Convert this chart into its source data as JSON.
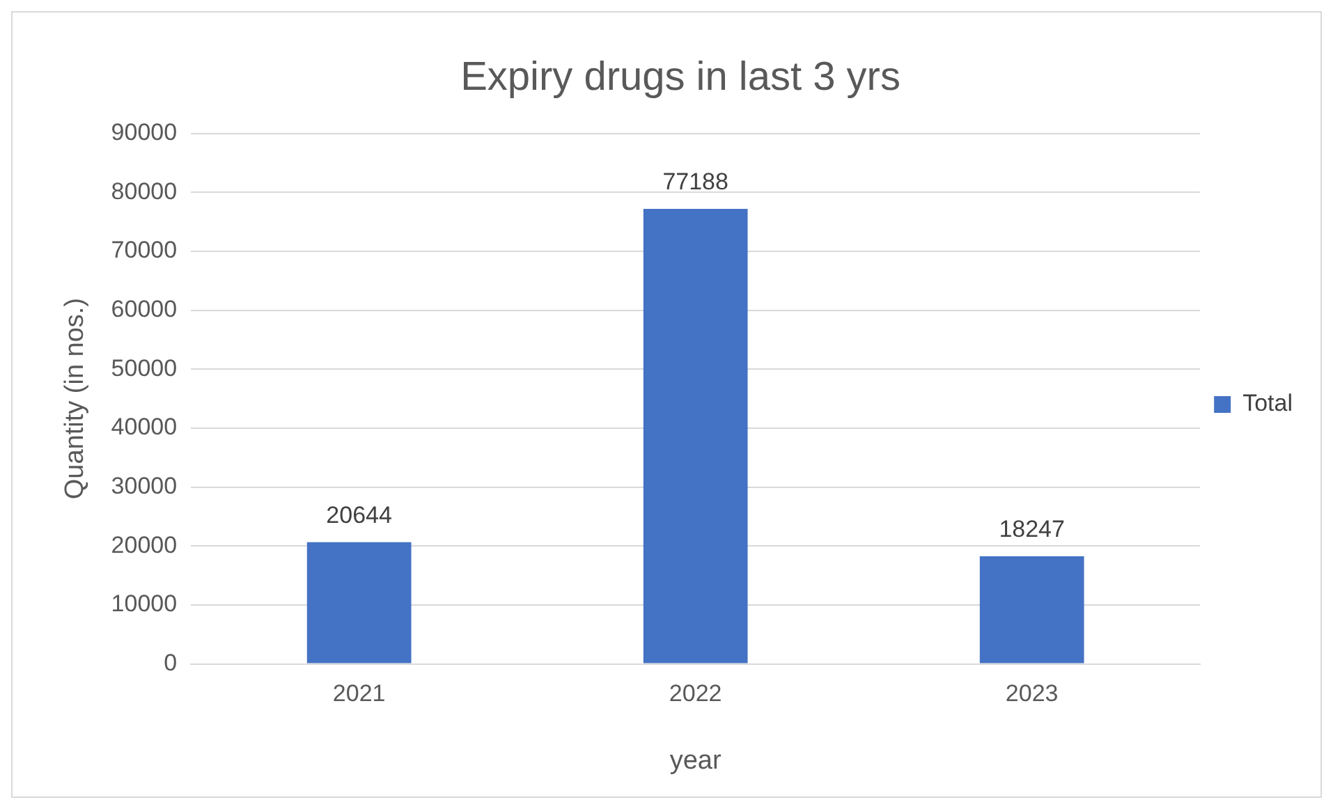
{
  "chart_data": {
    "type": "bar",
    "title": "Expiry drugs in last 3 yrs",
    "xlabel": "year",
    "ylabel": "Quantity (in nos.)",
    "categories": [
      "2021",
      "2022",
      "2023"
    ],
    "series": [
      {
        "name": "Total",
        "color": "#4472c4",
        "values": [
          20644,
          77188,
          18247
        ]
      }
    ],
    "ylim": [
      0,
      90000
    ],
    "yticks": [
      0,
      10000,
      20000,
      30000,
      40000,
      50000,
      60000,
      70000,
      80000,
      90000
    ],
    "grid": "y",
    "legend": "right",
    "data_labels": true
  }
}
